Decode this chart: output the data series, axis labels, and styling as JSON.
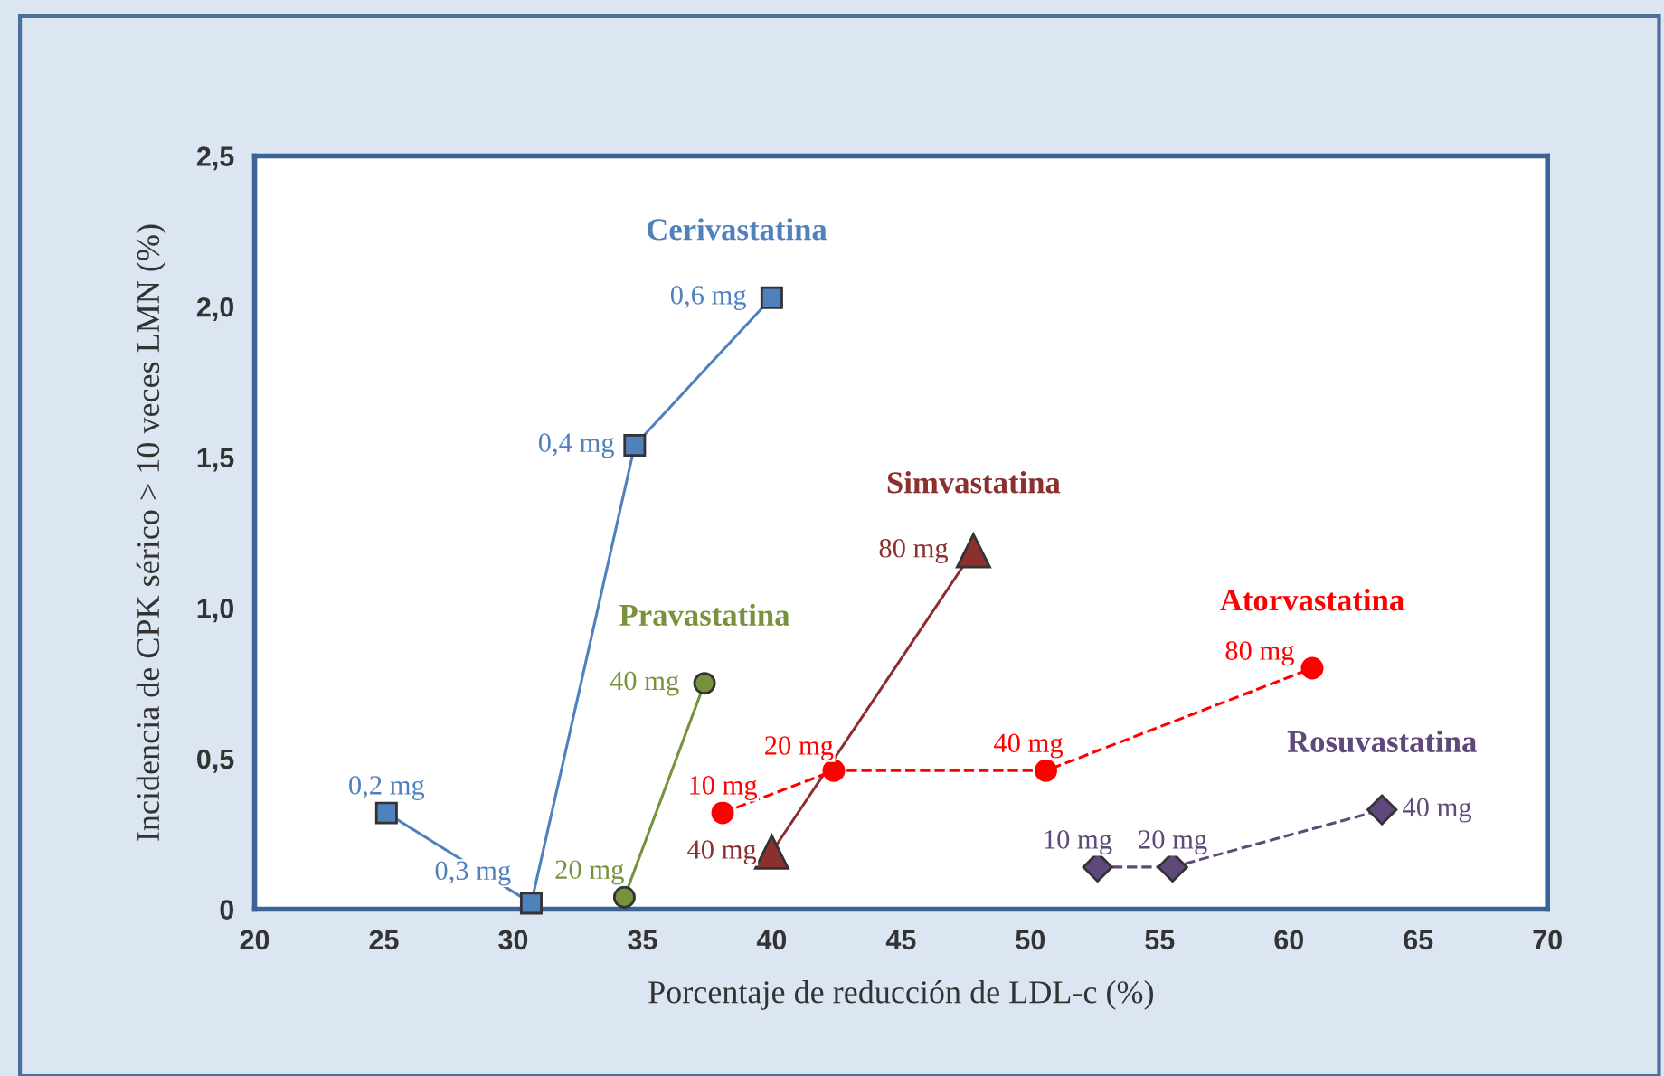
{
  "chart_data": {
    "type": "line",
    "xlabel": "Porcentaje de reducción de LDL-c (%)",
    "ylabel": "Incidencia de CPK sérico > 10 veces LMN (%)",
    "xlim": [
      20,
      70
    ],
    "xticks": [
      20,
      25,
      30,
      35,
      40,
      45,
      50,
      55,
      60,
      65,
      70
    ],
    "ylim": [
      0,
      2.5
    ],
    "yticks": [
      0,
      {
        "value": 0.5,
        "label": "0,5"
      },
      {
        "value": 1.0,
        "label": "1,0"
      },
      {
        "value": 1.5,
        "label": "1,5"
      },
      {
        "value": 2.0,
        "label": "2,0"
      },
      {
        "value": 2.5,
        "label": "2,5"
      }
    ],
    "grid": false,
    "annotations": [
      {
        "text": "0,2 mg",
        "x": 25.1,
        "y": 0.32
      },
      {
        "text": "0,3 mg",
        "x": 30.7,
        "y": 0.02
      },
      {
        "text": "0,4 mg",
        "x": 34.7,
        "y": 1.54
      },
      {
        "text": "0,6 mg",
        "x": 40.0,
        "y": 2.03
      },
      {
        "text": "20 mg",
        "x": 34.3,
        "y": 0.04
      },
      {
        "text": "40 mg",
        "x": 37.4,
        "y": 0.75
      },
      {
        "text": "40 mg",
        "x": 40.0,
        "y": 0.19
      },
      {
        "text": "80 mg",
        "x": 47.8,
        "y": 1.19
      },
      {
        "text": "10 mg",
        "x": 38.1,
        "y": 0.32
      },
      {
        "text": "20 mg",
        "x": 42.4,
        "y": 0.46
      },
      {
        "text": "40 mg",
        "x": 50.6,
        "y": 0.46
      },
      {
        "text": "80 mg",
        "x": 60.9,
        "y": 0.8
      },
      {
        "text": "10 mg",
        "x": 52.6,
        "y": 0.14
      },
      {
        "text": "20 mg",
        "x": 55.5,
        "y": 0.14
      },
      {
        "text": "40 mg",
        "x": 63.6,
        "y": 0.33
      }
    ],
    "series": [
      {
        "name": "Cerivastatina",
        "color": "#4f81bd",
        "marker": "square",
        "line_style": "solid",
        "x": [
          25.1,
          30.7,
          34.7,
          40.0
        ],
        "values": [
          0.32,
          0.02,
          1.54,
          2.03
        ]
      },
      {
        "name": "Pravastatina",
        "color": "#76923c",
        "marker": "circle",
        "line_style": "solid",
        "x": [
          34.3,
          37.4
        ],
        "values": [
          0.04,
          0.75
        ]
      },
      {
        "name": "Simvastatina",
        "color": "#8b2f2f",
        "marker": "triangle",
        "line_style": "solid",
        "x": [
          40.0,
          47.8
        ],
        "values": [
          0.19,
          1.19
        ]
      },
      {
        "name": "Atorvastatina",
        "color": "#ff0000",
        "marker": "circle",
        "line_style": "dashed",
        "x": [
          38.1,
          42.4,
          50.6,
          60.9
        ],
        "values": [
          0.32,
          0.46,
          0.46,
          0.8
        ]
      },
      {
        "name": "Rosuvastatina",
        "color": "#5f497a",
        "marker": "diamond",
        "line_style": "dashed",
        "x": [
          52.6,
          55.5,
          63.6
        ],
        "values": [
          0.14,
          0.14,
          0.33
        ]
      }
    ]
  }
}
